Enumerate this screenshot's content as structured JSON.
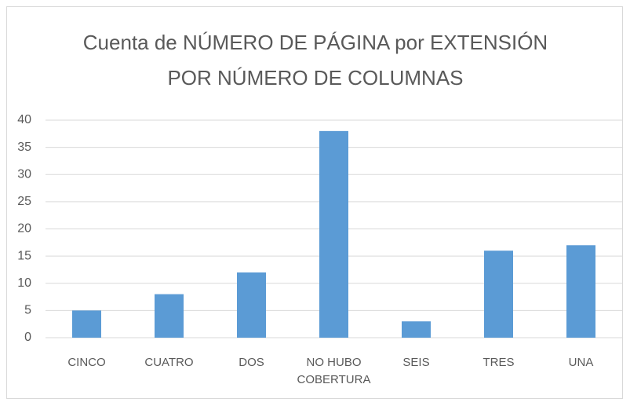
{
  "chart_data": {
    "type": "bar",
    "title": [
      "Cuenta de NÚMERO DE PÁGINA por EXTENSIÓN",
      "POR NÚMERO DE COLUMNAS"
    ],
    "categories": [
      "CINCO",
      "CUATRO",
      "DOS",
      "NO HUBO COBERTURA",
      "SEIS",
      "TRES",
      "UNA"
    ],
    "values": [
      5,
      8,
      12,
      38,
      3,
      16,
      17
    ],
    "color": "#5b9bd5",
    "ylim": [
      0,
      40
    ],
    "yticks": [
      0,
      5,
      10,
      15,
      20,
      25,
      30,
      35,
      40
    ],
    "grid": true
  }
}
